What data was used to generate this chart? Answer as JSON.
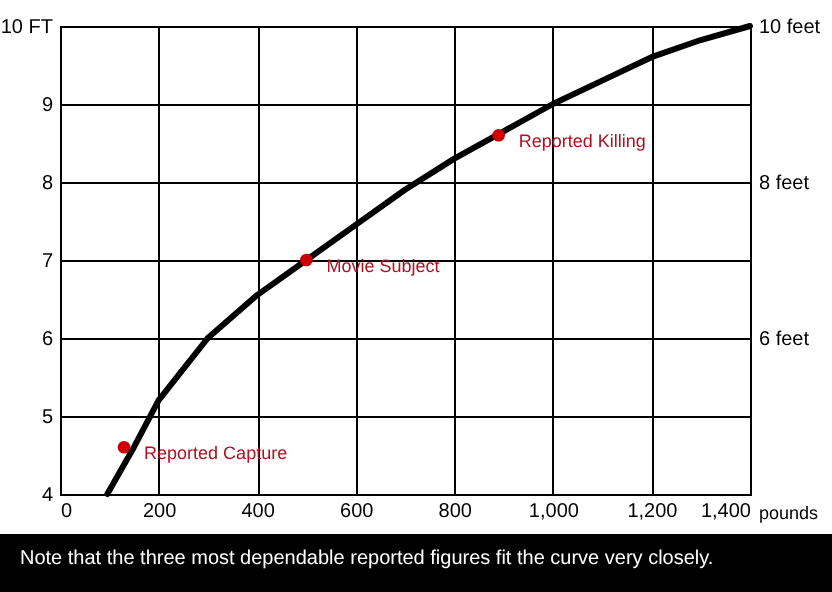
{
  "chart_data": {
    "type": "line",
    "xlabel": "pounds",
    "xlim": [
      0,
      1400
    ],
    "xticks": [
      0,
      200,
      400,
      600,
      800,
      {
        "value": 1000,
        "label": "1,000"
      },
      {
        "value": 1200,
        "label": "1,200"
      },
      {
        "value": 1400,
        "label": "1,400"
      }
    ],
    "ylim": [
      4,
      10
    ],
    "yticks": [
      4,
      5,
      6,
      7,
      8,
      9,
      {
        "value": 10,
        "label": "10 FT"
      }
    ],
    "y2lim": [
      4,
      10
    ],
    "y2ticks": [
      {
        "value": 6,
        "label": "6 feet"
      },
      {
        "value": 8,
        "label": "8 feet"
      },
      {
        "value": 10,
        "label": "10 feet"
      }
    ],
    "grid": true,
    "series": [
      {
        "type": "line",
        "color": "#000000",
        "marker": "none",
        "line_style": "solid",
        "x": [
          96,
          150,
          200,
          250,
          300,
          400,
          500,
          600,
          700,
          800,
          900,
          1000,
          1100,
          1200,
          1300,
          1400
        ],
        "values": [
          4.0,
          4.6,
          5.2,
          5.6,
          6.0,
          6.55,
          7.0,
          7.45,
          7.9,
          8.3,
          8.65,
          9.0,
          9.3,
          9.6,
          9.82,
          10.0
        ]
      },
      {
        "type": "scatter",
        "color": "#cc0000",
        "marker": "circle",
        "x": [
          130,
          500,
          890
        ],
        "values": [
          4.6,
          7.0,
          8.6
        ]
      }
    ],
    "annotations": [
      {
        "text": "Reported Capture",
        "x": 130,
        "y": 4.6
      },
      {
        "text": "Movie Subject",
        "x": 500,
        "y": 7.0
      },
      {
        "text": "Reported Killing",
        "x": 890,
        "y": 8.6
      },
      "Note that the three most dependable reported figures fit the curve very closely."
    ]
  }
}
